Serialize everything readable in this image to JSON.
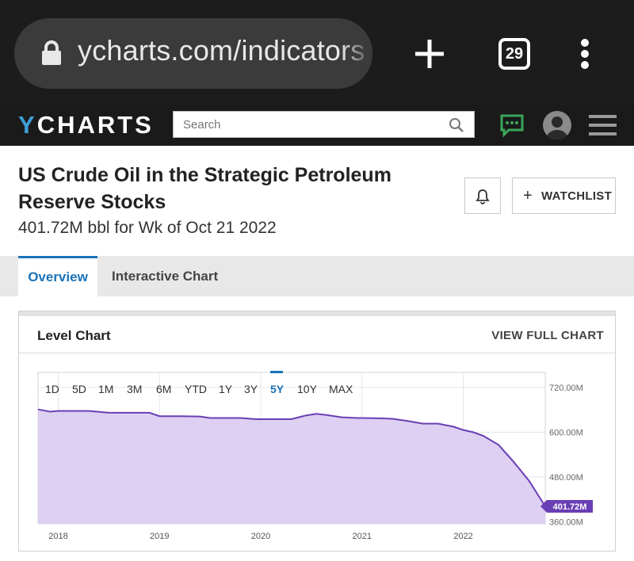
{
  "browser": {
    "url": "ycharts.com/indicators",
    "tab_count": "29",
    "icons": [
      "lock-icon",
      "plus-icon",
      "tabs-counter",
      "more-vert-icon"
    ]
  },
  "site": {
    "logo": "CHARTS",
    "logo_initial": "Y",
    "search_placeholder": "Search",
    "brand_color": "#3f9fd8",
    "chat_color": "#3aa55a"
  },
  "header": {
    "title": "US Crude Oil in the Strategic Petroleum Reserve Stocks",
    "subtitle": "401.72M bbl for Wk of Oct 21 2022",
    "watchlist_label": "WATCHLIST",
    "watchlist_plus": "+"
  },
  "tabs": [
    {
      "label": "Overview",
      "active": true
    },
    {
      "label": "Interactive Chart",
      "active": false
    }
  ],
  "panel": {
    "title": "Level Chart",
    "link": "VIEW FULL CHART"
  },
  "time_ranges": [
    "1D",
    "5D",
    "1M",
    "3M",
    "6M",
    "YTD",
    "1Y",
    "3Y",
    "5Y",
    "10Y",
    "MAX"
  ],
  "active_range": "5Y",
  "chart_data": {
    "type": "area",
    "ylabel": "",
    "y_ticks": [
      "720.00M",
      "600.00M",
      "480.00M",
      "360.00M"
    ],
    "x_ticks": [
      "2018",
      "2019",
      "2020",
      "2021",
      "2022"
    ],
    "ylim": [
      355,
      760
    ],
    "last_value_label": "401.72M",
    "line_color": "#6a3fb5",
    "fill_color": "#dbcdf1",
    "series": [
      {
        "x": [
          2017.8,
          2017.92,
          2018.0,
          2018.3,
          2018.5,
          2018.9,
          2019.0,
          2019.2,
          2019.4,
          2019.5,
          2019.8,
          2019.95,
          2020.0,
          2020.2,
          2020.3,
          2020.45,
          2020.55,
          2020.65,
          2020.8,
          2020.95,
          2021.0,
          2021.2,
          2021.3,
          2021.45,
          2021.6,
          2021.75,
          2021.9,
          2022.0,
          2022.1,
          2022.2,
          2022.35,
          2022.5,
          2022.65,
          2022.81
        ],
        "y": [
          661,
          655,
          657,
          657,
          652,
          652,
          643,
          643,
          642,
          638,
          638,
          635,
          635,
          635,
          635,
          645,
          649,
          646,
          640,
          638,
          638,
          637,
          636,
          630,
          623,
          623,
          615,
          606,
          600,
          590,
          566,
          520,
          470,
          401.72
        ]
      }
    ]
  }
}
